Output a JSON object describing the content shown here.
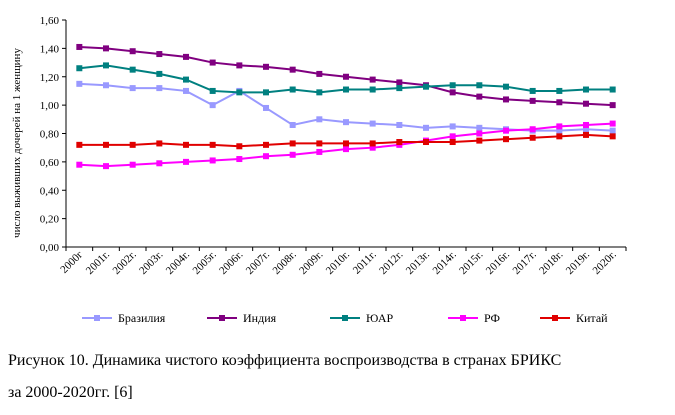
{
  "chart_data": {
    "type": "line",
    "ylabel": "число выживших дочерей на 1 женщину",
    "ylim": [
      0,
      1.6
    ],
    "yticks": [
      "0,00",
      "0,20",
      "0,40",
      "0,60",
      "0,80",
      "1,00",
      "1,20",
      "1,40",
      "1,60"
    ],
    "ytick_values": [
      0,
      0.2,
      0.4,
      0.6,
      0.8,
      1.0,
      1.2,
      1.4,
      1.6
    ],
    "grid": false,
    "legend_position": "bottom",
    "categories": [
      "2000г",
      "2001г.",
      "2002г.",
      "2003г.",
      "2004г.",
      "2005г.",
      "2006г.",
      "2007г.",
      "2008г.",
      "2009г.",
      "2010г.",
      "2011г.",
      "2012г.",
      "2013г.",
      "2014г.",
      "2015г.",
      "2016г.",
      "2017г.",
      "2018г.",
      "2019г.",
      "2020г."
    ],
    "series": [
      {
        "name": "Бразилия",
        "color": "#9999ff",
        "marker": "square",
        "values": [
          1.15,
          1.14,
          1.12,
          1.12,
          1.1,
          1.0,
          1.1,
          0.98,
          0.86,
          0.9,
          0.88,
          0.87,
          0.86,
          0.84,
          0.85,
          0.84,
          0.83,
          0.82,
          0.82,
          0.83,
          0.82
        ]
      },
      {
        "name": "Индия",
        "color": "#800080",
        "marker": "square",
        "values": [
          1.41,
          1.4,
          1.38,
          1.36,
          1.34,
          1.3,
          1.28,
          1.27,
          1.25,
          1.22,
          1.2,
          1.18,
          1.16,
          1.14,
          1.09,
          1.06,
          1.04,
          1.03,
          1.02,
          1.01,
          1.0
        ]
      },
      {
        "name": "ЮАР",
        "color": "#008080",
        "marker": "square",
        "values": [
          1.26,
          1.28,
          1.25,
          1.22,
          1.18,
          1.1,
          1.09,
          1.09,
          1.11,
          1.09,
          1.11,
          1.11,
          1.12,
          1.13,
          1.14,
          1.14,
          1.13,
          1.1,
          1.1,
          1.11,
          1.11
        ]
      },
      {
        "name": "РФ",
        "color": "#ff00ff",
        "marker": "square",
        "values": [
          0.58,
          0.57,
          0.58,
          0.59,
          0.6,
          0.61,
          0.62,
          0.64,
          0.65,
          0.67,
          0.69,
          0.7,
          0.72,
          0.75,
          0.78,
          0.8,
          0.82,
          0.83,
          0.85,
          0.86,
          0.87
        ]
      },
      {
        "name": "Китай",
        "color": "#e00000",
        "marker": "square",
        "values": [
          0.72,
          0.72,
          0.72,
          0.73,
          0.72,
          0.72,
          0.71,
          0.72,
          0.73,
          0.73,
          0.73,
          0.73,
          0.74,
          0.74,
          0.74,
          0.75,
          0.76,
          0.77,
          0.78,
          0.79,
          0.78
        ]
      }
    ]
  },
  "caption": {
    "line1": "Рисунок 10. Динамика чистого коэффициента воспроизводства в странах БРИКС",
    "line2": "за 2000-2020гг. [6]"
  }
}
